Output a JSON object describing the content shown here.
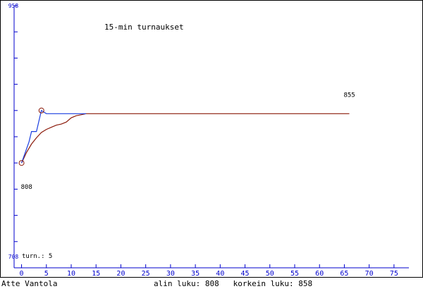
{
  "chart_data": {
    "type": "line",
    "title": "15-min turnaukset",
    "y_top_label": "958",
    "y_bottom_label": "708",
    "ylim": [
      708,
      958
    ],
    "xlim": [
      -1.5,
      78
    ],
    "x_ticks": [
      0,
      5,
      10,
      15,
      20,
      25,
      30,
      35,
      40,
      45,
      50,
      55,
      60,
      65,
      70,
      75
    ],
    "y_ticks": [
      708,
      733,
      758,
      783,
      808,
      833,
      858,
      883,
      908,
      933,
      958
    ],
    "turn_label": "turn.: 5",
    "colors": {
      "axis": "#0000cc",
      "series_blue": "#1a3ee0",
      "series_red": "#8b1a0a",
      "text": "#000000"
    },
    "series": [
      {
        "color": "#1a3ee0",
        "x": [
          0,
          1.5,
          2,
          3,
          4,
          5,
          12,
          13
        ],
        "y": [
          808,
          828,
          838,
          838,
          858,
          855,
          855,
          855
        ]
      },
      {
        "color": "#8b1a0a",
        "x": [
          0,
          1,
          2,
          3,
          4,
          5,
          6,
          7,
          8,
          9,
          10,
          11,
          12,
          13,
          66
        ],
        "y": [
          808,
          818,
          826,
          832,
          837,
          840,
          842,
          844,
          845,
          847,
          851,
          853,
          854,
          855,
          855
        ]
      }
    ],
    "markers": [
      {
        "x": 0,
        "y": 808,
        "label": "808"
      },
      {
        "x": 4,
        "y": 858,
        "label": ""
      }
    ],
    "end_label": {
      "x": 66,
      "y": 855,
      "text": "855"
    }
  },
  "footer": {
    "left": "Atte Vantola",
    "right": "alin luku: 808   korkein luku: 858"
  }
}
